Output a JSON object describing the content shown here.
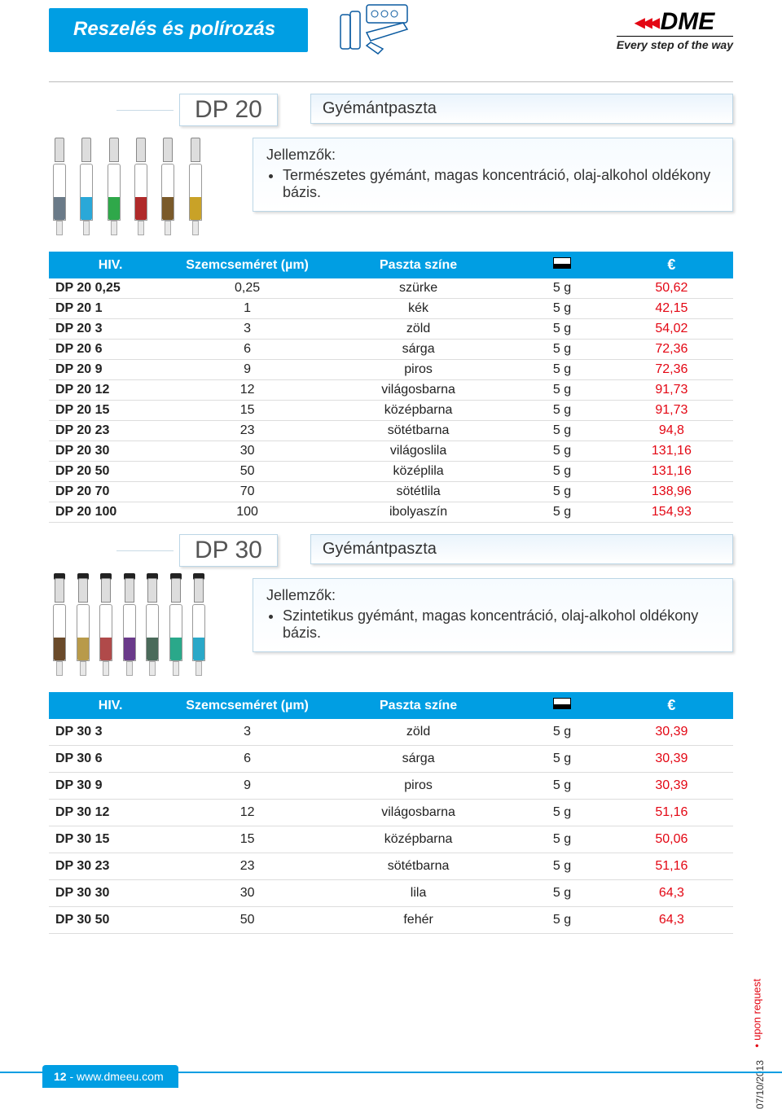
{
  "header": {
    "category": "Reszelés és polírozás",
    "logo_name": "DME",
    "logo_tagline": "Every step of the way"
  },
  "sections": [
    {
      "code": "DP 20",
      "title": "Gyémántpaszta",
      "features_heading": "Jellemzők:",
      "features": [
        "Természetes gyémánt, magas koncentráció, olaj-alkohol oldékony bázis."
      ],
      "syringe_colors": [
        "#6a7a88",
        "#2aa8d8",
        "#2fa84a",
        "#b02a2a",
        "#7a5a2a",
        "#c9a227"
      ],
      "syringe_cap": false,
      "table": {
        "columns": [
          "HIV.",
          "Szemcseméret (µm)",
          "Paszta színe",
          "__weight__",
          "€"
        ],
        "spacing": "compact",
        "rows": [
          [
            "DP 20 0,25",
            "0,25",
            "szürke",
            "5 g",
            "50,62"
          ],
          [
            "DP 20 1",
            "1",
            "kék",
            "5 g",
            "42,15"
          ],
          [
            "DP 20 3",
            "3",
            "zöld",
            "5 g",
            "54,02"
          ],
          [
            "DP 20 6",
            "6",
            "sárga",
            "5 g",
            "72,36"
          ],
          [
            "DP 20 9",
            "9",
            "piros",
            "5 g",
            "72,36"
          ],
          [
            "DP 20 12",
            "12",
            "világosbarna",
            "5 g",
            "91,73"
          ],
          [
            "DP 20 15",
            "15",
            "középbarna",
            "5 g",
            "91,73"
          ],
          [
            "DP 20 23",
            "23",
            "sötétbarna",
            "5 g",
            "94,8"
          ],
          [
            "DP 20 30",
            "30",
            "világoslila",
            "5 g",
            "131,16"
          ],
          [
            "DP 20 50",
            "50",
            "középlila",
            "5 g",
            "131,16"
          ],
          [
            "DP 20 70",
            "70",
            "sötétlila",
            "5 g",
            "138,96"
          ],
          [
            "DP 20 100",
            "100",
            "ibolyaszín",
            "5 g",
            "154,93"
          ]
        ]
      }
    },
    {
      "code": "DP 30",
      "title": "Gyémántpaszta",
      "features_heading": "Jellemzők:",
      "features": [
        "Szintetikus gyémánt, magas koncentráció, olaj-alkohol oldékony bázis."
      ],
      "syringe_colors": [
        "#6a4a2a",
        "#b89a4a",
        "#b04a4a",
        "#6a3a8a",
        "#4a6a5a",
        "#2aa88a",
        "#2aa8c8"
      ],
      "syringe_cap": true,
      "table": {
        "columns": [
          "HIV.",
          "Szemcseméret (µm)",
          "Paszta színe",
          "__weight__",
          "€"
        ],
        "spacing": "spaced",
        "rows": [
          [
            "DP 30 3",
            "3",
            "zöld",
            "5 g",
            "30,39"
          ],
          [
            "DP 30 6",
            "6",
            "sárga",
            "5 g",
            "30,39"
          ],
          [
            "DP 30 9",
            "9",
            "piros",
            "5 g",
            "30,39"
          ],
          [
            "DP 30 12",
            "12",
            "világosbarna",
            "5 g",
            "51,16"
          ],
          [
            "DP 30 15",
            "15",
            "középbarna",
            "5 g",
            "50,06"
          ],
          [
            "DP 30 23",
            "23",
            "sötétbarna",
            "5 g",
            "51,16"
          ],
          [
            "DP 30 30",
            "30",
            "lila",
            "5 g",
            "64,3"
          ],
          [
            "DP 30 50",
            "50",
            "fehér",
            "5 g",
            "64,3"
          ]
        ]
      }
    }
  ],
  "side_note": "upon request",
  "side_date": "07/10/2013",
  "footer": {
    "page": "12",
    "sep": " - ",
    "url": "www.dmeeu.com"
  },
  "colors": {
    "brand_blue": "#009ee3",
    "price_red": "#e30613"
  }
}
